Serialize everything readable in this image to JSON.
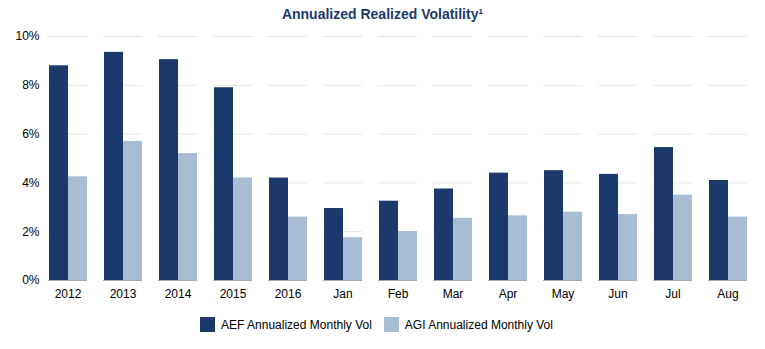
{
  "chart_data": {
    "type": "bar",
    "title": "Annualized Realized Volatility¹",
    "categories": [
      "2012",
      "2013",
      "2014",
      "2015",
      "2016",
      "Jan",
      "Feb",
      "Mar",
      "Apr",
      "May",
      "Jun",
      "Jul",
      "Aug"
    ],
    "series": [
      {
        "name": "AEF Annualized Monthly Vol",
        "color": "#1B3A6B",
        "values": [
          8.8,
          9.35,
          9.05,
          7.9,
          4.2,
          2.95,
          3.25,
          3.75,
          4.4,
          4.5,
          4.35,
          5.45,
          4.1
        ]
      },
      {
        "name": "AGI Annualized Monthly Vol",
        "color": "#A8BDD4",
        "values": [
          4.25,
          5.7,
          5.2,
          4.2,
          2.6,
          1.75,
          2.0,
          2.55,
          2.65,
          2.8,
          2.7,
          3.5,
          2.6
        ]
      }
    ],
    "ylim": [
      0,
      10
    ],
    "yticks": [
      {
        "value": 0,
        "label": "0%"
      },
      {
        "value": 2,
        "label": "2%"
      },
      {
        "value": 4,
        "label": "4%"
      },
      {
        "value": 6,
        "label": "6%"
      },
      {
        "value": 8,
        "label": "8%"
      },
      {
        "value": 10,
        "label": "10%"
      }
    ],
    "grid": true,
    "legend": "bottom"
  }
}
